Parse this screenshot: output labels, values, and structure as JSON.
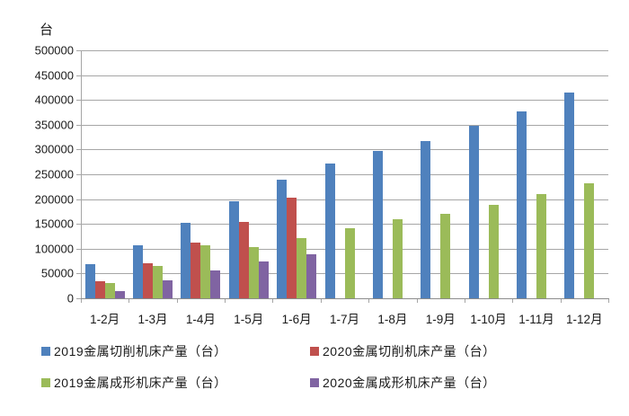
{
  "chart_data": {
    "type": "bar",
    "title": "",
    "unit_label": "台",
    "xlabel": "",
    "ylabel": "台",
    "ylim": [
      0,
      500000
    ],
    "ytick_step": 50000,
    "ytick_labels": [
      "0",
      "50000",
      "100000",
      "150000",
      "200000",
      "250000",
      "300000",
      "350000",
      "400000",
      "450000",
      "500000"
    ],
    "grid": true,
    "legend_position": "bottom",
    "categories": [
      "1-2月",
      "1-3月",
      "1-4月",
      "1-5月",
      "1-6月",
      "1-7月",
      "1-8月",
      "1-9月",
      "1-10月",
      "1-11月",
      "1-12月"
    ],
    "series": [
      {
        "name": "2019金属切削机床产量（台）",
        "color": "#4F81BD",
        "values": [
          69000,
          107000,
          152000,
          196000,
          239000,
          271000,
          298000,
          317000,
          348000,
          376000,
          415000
        ]
      },
      {
        "name": "2020金属切削机床产量（台）",
        "color": "#C0504D",
        "values": [
          34000,
          71000,
          113000,
          154000,
          203000,
          null,
          null,
          null,
          null,
          null,
          null
        ]
      },
      {
        "name": "2019金属成形机床产量（台）",
        "color": "#9BBB59",
        "values": [
          31000,
          65000,
          106000,
          103000,
          121000,
          141000,
          160000,
          170000,
          189000,
          210000,
          231000
        ]
      },
      {
        "name": "2020金属成形机床产量（台）",
        "color": "#8064A2",
        "values": [
          15000,
          36000,
          57000,
          75000,
          88000,
          null,
          null,
          null,
          null,
          null,
          null
        ]
      }
    ]
  }
}
